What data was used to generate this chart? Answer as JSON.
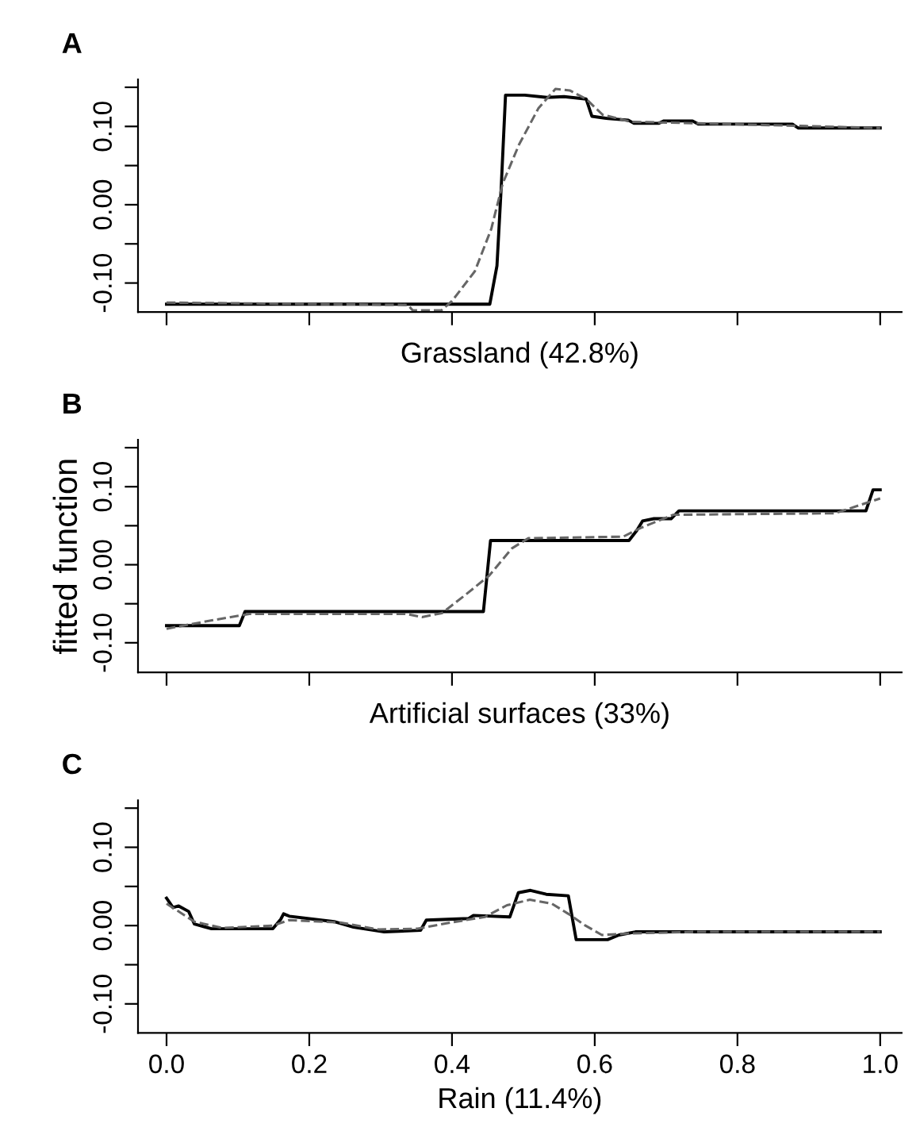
{
  "chart_data": [
    {
      "type": "line",
      "title": "A",
      "xlabel": "Grassland (42.8%)",
      "xlim": [
        -0.04,
        1.03
      ],
      "ylim": [
        -0.137,
        0.16
      ],
      "tick_labels": "y",
      "marker": "none",
      "grid": false,
      "legend": false,
      "xticks": [
        {
          "value": 0,
          "label": null
        },
        {
          "value": 0.2,
          "label": null
        },
        {
          "value": 0.4,
          "label": null
        },
        {
          "value": 0.6,
          "label": null
        },
        {
          "value": 0.8,
          "label": null
        },
        {
          "value": 1,
          "label": null
        }
      ],
      "yticks": [
        {
          "value": -0.1,
          "label": "-0.10"
        },
        {
          "value": -0.05,
          "label": null
        },
        {
          "value": 0,
          "label": "0.00"
        },
        {
          "value": 0.05,
          "label": null
        },
        {
          "value": 0.1,
          "label": "0.10"
        },
        {
          "value": 0.15,
          "label": null
        }
      ],
      "series": [
        {
          "color": "#000000",
          "line_style": "solid",
          "x": [
            0,
            0.453,
            0.463,
            0.469,
            0.475,
            0.502,
            0.533,
            0.557,
            0.588,
            0.596,
            0.619,
            0.647,
            0.655,
            0.69,
            0.697,
            0.737,
            0.745,
            0.877,
            0.885,
            1
          ],
          "values": [
            -0.127,
            -0.127,
            -0.078,
            0.023,
            0.14,
            0.14,
            0.137,
            0.138,
            0.135,
            0.113,
            0.11,
            0.108,
            0.104,
            0.104,
            0.107,
            0.107,
            0.103,
            0.103,
            0.098,
            0.098
          ]
        },
        {
          "color": "#666666",
          "line_style": "dashed",
          "x": [
            0,
            0.338,
            0.345,
            0.385,
            0.4,
            0.432,
            0.455,
            0.471,
            0.494,
            0.521,
            0.545,
            0.565,
            0.588,
            0.611,
            0.65,
            0.744,
            1
          ],
          "values": [
            -0.125,
            -0.128,
            -0.135,
            -0.135,
            -0.123,
            -0.085,
            -0.031,
            0.027,
            0.077,
            0.123,
            0.148,
            0.146,
            0.135,
            0.115,
            0.106,
            0.104,
            0.098
          ]
        }
      ]
    },
    {
      "type": "line",
      "title": "B",
      "xlabel": "Artificial surfaces (33%)",
      "ylabel": "fitted function",
      "xlim": [
        -0.04,
        1.03
      ],
      "ylim": [
        -0.138,
        0.16
      ],
      "tick_labels": "y",
      "marker": "none",
      "grid": false,
      "legend": false,
      "xticks": [
        {
          "value": 0,
          "label": null
        },
        {
          "value": 0.2,
          "label": null
        },
        {
          "value": 0.4,
          "label": null
        },
        {
          "value": 0.6,
          "label": null
        },
        {
          "value": 0.8,
          "label": null
        },
        {
          "value": 1,
          "label": null
        }
      ],
      "yticks": [
        {
          "value": -0.1,
          "label": "-0.10"
        },
        {
          "value": -0.05,
          "label": null
        },
        {
          "value": 0,
          "label": "0.00"
        },
        {
          "value": 0.05,
          "label": null
        },
        {
          "value": 0.1,
          "label": "0.10"
        },
        {
          "value": 0.15,
          "label": null
        }
      ],
      "series": [
        {
          "color": "#000000",
          "line_style": "solid",
          "x": [
            0,
            0.102,
            0.11,
            0.444,
            0.454,
            0.648,
            0.659,
            0.667,
            0.683,
            0.707,
            0.718,
            0.98,
            0.99,
            1
          ],
          "values": [
            -0.078,
            -0.078,
            -0.06,
            -0.06,
            0.031,
            0.031,
            0.044,
            0.056,
            0.059,
            0.059,
            0.069,
            0.069,
            0.096,
            0.096
          ]
        },
        {
          "color": "#666666",
          "line_style": "dashed",
          "x": [
            0,
            0.053,
            0.116,
            0.335,
            0.358,
            0.386,
            0.421,
            0.452,
            0.484,
            0.507,
            0.64,
            0.664,
            0.71,
            0.937,
            1
          ],
          "values": [
            -0.082,
            -0.073,
            -0.063,
            -0.063,
            -0.067,
            -0.062,
            -0.037,
            -0.014,
            0.021,
            0.034,
            0.036,
            0.047,
            0.064,
            0.066,
            0.085
          ]
        }
      ]
    },
    {
      "type": "line",
      "title": "C",
      "xlabel": "Rain (11.4%)",
      "xlim": [
        -0.04,
        1.03
      ],
      "ylim": [
        -0.137,
        0.16
      ],
      "marker": "none",
      "grid": false,
      "legend": false,
      "xticks": [
        {
          "value": 0,
          "label": "0.0"
        },
        {
          "value": 0.2,
          "label": "0.2"
        },
        {
          "value": 0.4,
          "label": "0.4"
        },
        {
          "value": 0.6,
          "label": "0.6"
        },
        {
          "value": 0.8,
          "label": "0.8"
        },
        {
          "value": 1,
          "label": "1.0"
        }
      ],
      "yticks": [
        {
          "value": -0.1,
          "label": "-0.10"
        },
        {
          "value": -0.05,
          "label": null
        },
        {
          "value": 0,
          "label": "0.00"
        },
        {
          "value": 0.05,
          "label": null
        },
        {
          "value": 0.1,
          "label": "0.10"
        },
        {
          "value": 0.15,
          "label": null
        }
      ],
      "series": [
        {
          "color": "#000000",
          "line_style": "solid",
          "x": [
            0,
            0.009,
            0.017,
            0.031,
            0.039,
            0.063,
            0.149,
            0.16,
            0.164,
            0.172,
            0.235,
            0.262,
            0.305,
            0.356,
            0.364,
            0.423,
            0.43,
            0.481,
            0.493,
            0.51,
            0.532,
            0.563,
            0.574,
            0.618,
            0.634,
            0.657,
            1
          ],
          "values": [
            0.035,
            0.023,
            0.025,
            0.018,
            0.002,
            -0.004,
            -0.004,
            0.008,
            0.015,
            0.012,
            0.005,
            -0.002,
            -0.008,
            -0.006,
            0.007,
            0.009,
            0.013,
            0.011,
            0.042,
            0.045,
            0.04,
            0.038,
            -0.018,
            -0.018,
            -0.012,
            -0.008,
            -0.008
          ]
        },
        {
          "color": "#666666",
          "line_style": "dashed",
          "x": [
            0,
            0.039,
            0.078,
            0.149,
            0.172,
            0.243,
            0.297,
            0.352,
            0.399,
            0.446,
            0.477,
            0.509,
            0.54,
            0.563,
            0.587,
            0.61,
            0.649,
            0.743,
            1
          ],
          "values": [
            0.028,
            0.005,
            -0.003,
            0,
            0.007,
            0.004,
            -0.005,
            -0.004,
            0.004,
            0.011,
            0.026,
            0.033,
            0.028,
            0.015,
            0,
            -0.012,
            -0.01,
            -0.008,
            -0.008
          ]
        }
      ]
    }
  ]
}
